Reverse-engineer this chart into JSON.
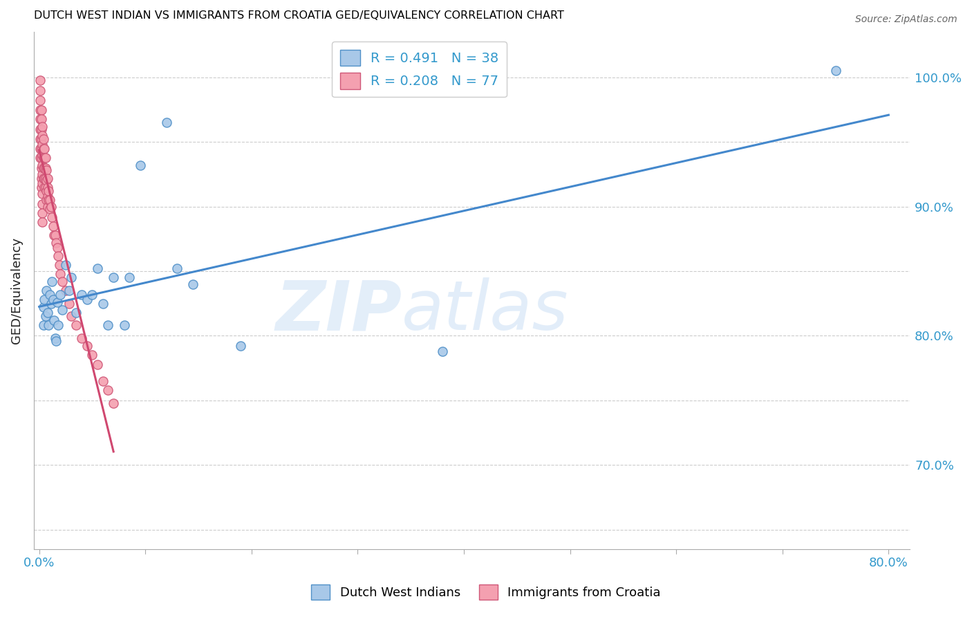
{
  "title": "DUTCH WEST INDIAN VS IMMIGRANTS FROM CROATIA GED/EQUIVALENCY CORRELATION CHART",
  "source": "Source: ZipAtlas.com",
  "ylabel": "GED/Equivalency",
  "xlim": [
    -0.005,
    0.82
  ],
  "ylim": [
    0.635,
    1.035
  ],
  "blue_R": 0.491,
  "blue_N": 38,
  "pink_R": 0.208,
  "pink_N": 77,
  "blue_color": "#a8c8e8",
  "pink_color": "#f4a0b0",
  "blue_edge_color": "#5090c8",
  "pink_edge_color": "#d05878",
  "blue_line_color": "#4488cc",
  "pink_line_color": "#d04870",
  "legend_label_blue": "Dutch West Indians",
  "legend_label_pink": "Immigrants from Croatia",
  "watermark_zip": "ZIP",
  "watermark_atlas": "atlas",
  "grid_color": "#cccccc",
  "y_tick_positions": [
    0.65,
    0.7,
    0.75,
    0.8,
    0.85,
    0.9,
    0.95,
    1.0
  ],
  "y_tick_labels_right": [
    "",
    "70.0%",
    "",
    "80.0%",
    "",
    "90.0%",
    "",
    "100.0%"
  ],
  "x_tick_positions": [
    0.0,
    0.1,
    0.2,
    0.3,
    0.4,
    0.5,
    0.6,
    0.7,
    0.8
  ],
  "x_tick_labels": [
    "0.0%",
    "",
    "",
    "",
    "",
    "",
    "",
    "",
    "80.0%"
  ],
  "blue_dots_x": [
    0.004,
    0.004,
    0.005,
    0.006,
    0.007,
    0.008,
    0.009,
    0.01,
    0.011,
    0.012,
    0.013,
    0.014,
    0.015,
    0.016,
    0.017,
    0.018,
    0.02,
    0.022,
    0.025,
    0.028,
    0.03,
    0.035,
    0.04,
    0.045,
    0.05,
    0.055,
    0.06,
    0.065,
    0.07,
    0.08,
    0.085,
    0.095,
    0.12,
    0.13,
    0.145,
    0.19,
    0.38,
    0.75
  ],
  "blue_dots_y": [
    0.822,
    0.808,
    0.828,
    0.815,
    0.835,
    0.818,
    0.808,
    0.832,
    0.825,
    0.842,
    0.828,
    0.812,
    0.798,
    0.796,
    0.826,
    0.808,
    0.832,
    0.82,
    0.855,
    0.835,
    0.845,
    0.818,
    0.832,
    0.828,
    0.832,
    0.852,
    0.825,
    0.808,
    0.845,
    0.808,
    0.845,
    0.932,
    0.965,
    0.852,
    0.84,
    0.792,
    0.788,
    1.005
  ],
  "pink_dots_x": [
    0.001,
    0.001,
    0.001,
    0.001,
    0.001,
    0.001,
    0.001,
    0.001,
    0.001,
    0.002,
    0.002,
    0.002,
    0.002,
    0.002,
    0.002,
    0.002,
    0.002,
    0.002,
    0.003,
    0.003,
    0.003,
    0.003,
    0.003,
    0.003,
    0.003,
    0.003,
    0.003,
    0.003,
    0.003,
    0.004,
    0.004,
    0.004,
    0.004,
    0.004,
    0.005,
    0.005,
    0.005,
    0.005,
    0.005,
    0.006,
    0.006,
    0.006,
    0.006,
    0.007,
    0.007,
    0.007,
    0.007,
    0.008,
    0.008,
    0.008,
    0.008,
    0.009,
    0.009,
    0.01,
    0.01,
    0.011,
    0.012,
    0.013,
    0.014,
    0.015,
    0.016,
    0.017,
    0.018,
    0.019,
    0.02,
    0.022,
    0.025,
    0.028,
    0.03,
    0.035,
    0.04,
    0.045,
    0.05,
    0.055,
    0.06,
    0.065,
    0.07
  ],
  "pink_dots_y": [
    0.998,
    0.99,
    0.982,
    0.975,
    0.968,
    0.96,
    0.952,
    0.945,
    0.938,
    0.975,
    0.968,
    0.96,
    0.952,
    0.945,
    0.938,
    0.93,
    0.922,
    0.915,
    0.962,
    0.955,
    0.948,
    0.94,
    0.932,
    0.925,
    0.918,
    0.91,
    0.902,
    0.895,
    0.888,
    0.952,
    0.945,
    0.938,
    0.93,
    0.922,
    0.945,
    0.938,
    0.93,
    0.922,
    0.915,
    0.938,
    0.93,
    0.922,
    0.915,
    0.928,
    0.92,
    0.912,
    0.905,
    0.922,
    0.915,
    0.908,
    0.9,
    0.912,
    0.905,
    0.905,
    0.898,
    0.9,
    0.892,
    0.885,
    0.878,
    0.878,
    0.872,
    0.868,
    0.862,
    0.855,
    0.848,
    0.842,
    0.835,
    0.825,
    0.815,
    0.808,
    0.798,
    0.792,
    0.785,
    0.778,
    0.765,
    0.758,
    0.748
  ]
}
